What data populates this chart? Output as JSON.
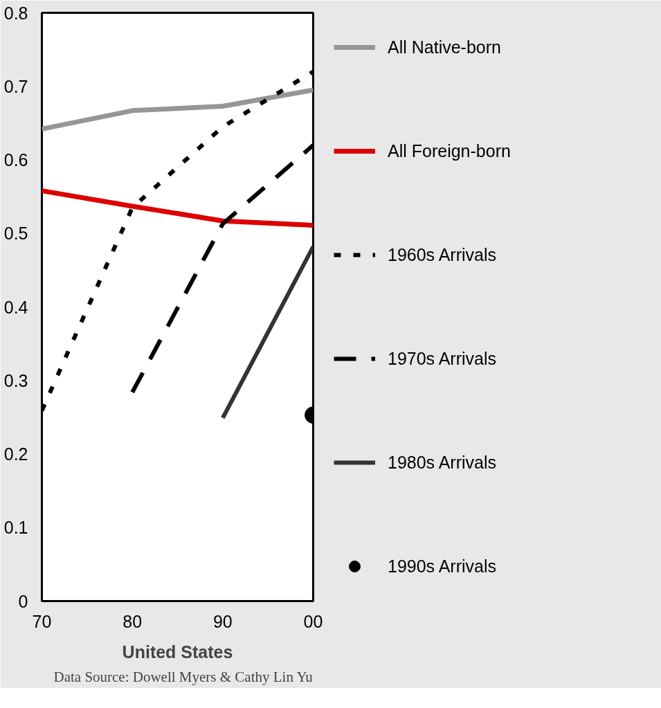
{
  "chart_data": {
    "type": "line",
    "xlabel": "United States",
    "x": [
      1970,
      1980,
      1990,
      2000
    ],
    "xlim": [
      1970,
      2000
    ],
    "xticks": [
      {
        "value": 1970,
        "label": "70"
      },
      {
        "value": 1980,
        "label": "80"
      },
      {
        "value": 1990,
        "label": "90"
      },
      {
        "value": 2000,
        "label": "00"
      }
    ],
    "ylim": [
      0,
      0.8
    ],
    "yticks": [
      0,
      0.1,
      0.2,
      0.3,
      0.4,
      0.5,
      0.6,
      0.7,
      0.8
    ],
    "series": [
      {
        "name": "All Native-born",
        "color": "#969696",
        "values": [
          0.642,
          0.667,
          0.673,
          0.695
        ]
      },
      {
        "name": "All Foreign-born",
        "color": "#dd0000",
        "values": [
          0.558,
          0.537,
          0.517,
          0.511
        ]
      },
      {
        "name": "1960s Arrivals",
        "color": "#000000",
        "line_style": "dotted",
        "values": [
          0.259,
          0.535,
          0.645,
          0.72
        ]
      },
      {
        "name": "1970s Arrivals",
        "color": "#000000",
        "line_style": "dashed",
        "values": [
          null,
          0.284,
          0.513,
          0.62
        ]
      },
      {
        "name": "1980s Arrivals",
        "color": "#333333",
        "values": [
          null,
          null,
          0.249,
          0.482
        ]
      },
      {
        "name": "1990s Arrivals",
        "color": "#000000",
        "type": "scatter",
        "marker": "circle",
        "values": [
          null,
          null,
          null,
          0.253
        ]
      }
    ],
    "grid": false,
    "legend": "right",
    "line_style": "solid",
    "annotations": [
      "Data Source: Dowell Myers & Cathy Lin Yu"
    ]
  }
}
